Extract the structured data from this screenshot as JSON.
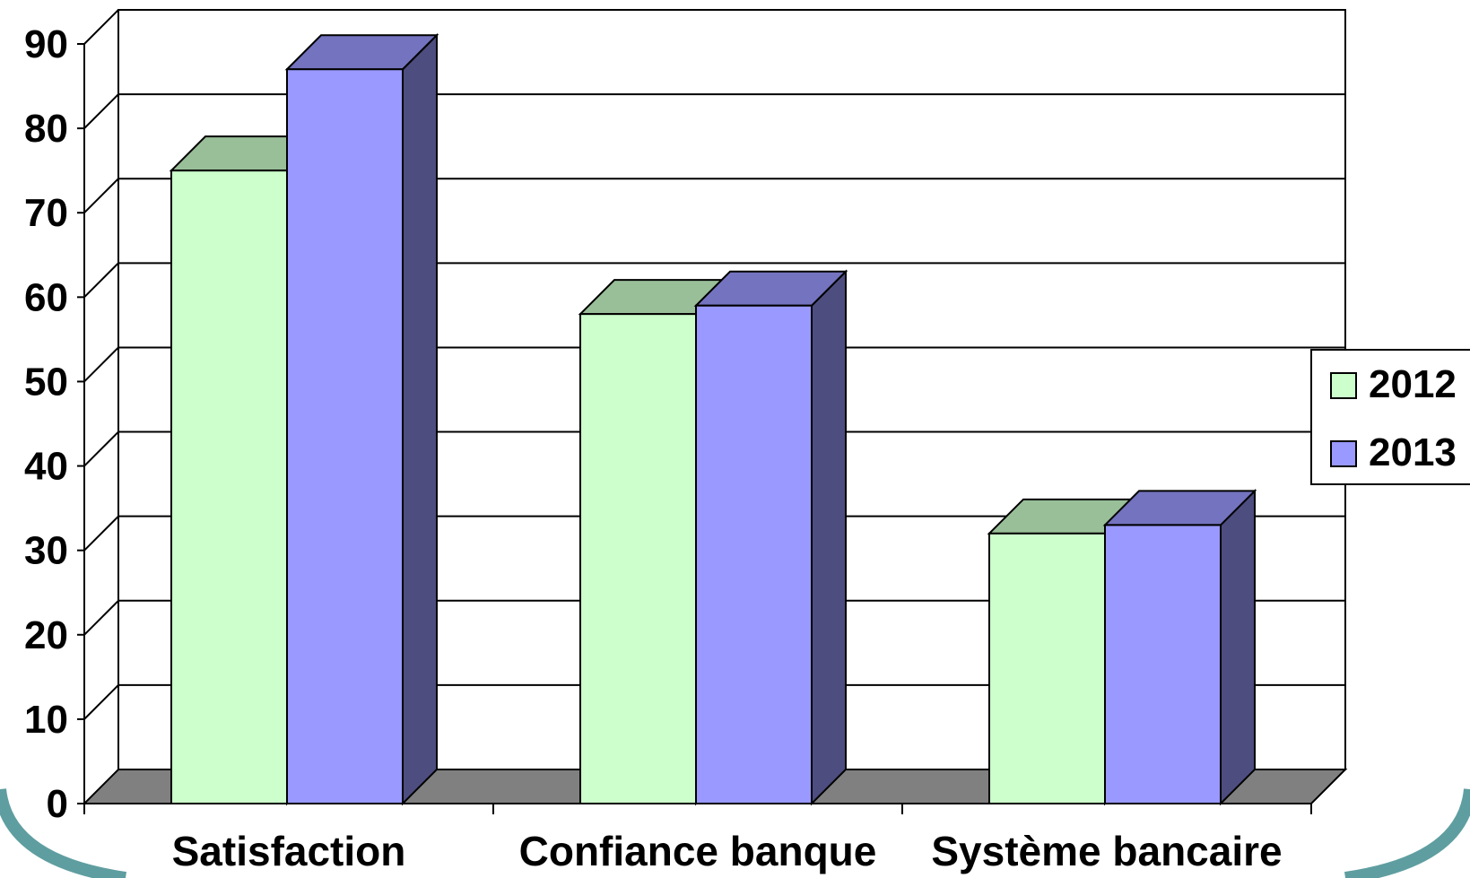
{
  "chart_data": {
    "type": "bar",
    "title": "",
    "xlabel": "",
    "ylabel": "",
    "categories": [
      "Satisfaction",
      "Confiance banque",
      "Système bancaire"
    ],
    "series": [
      {
        "name": "2012",
        "values": [
          75,
          58,
          32
        ],
        "colors": {
          "front": "#ccffcc",
          "top": "#99bf99",
          "side": "#99bf99"
        }
      },
      {
        "name": "2013",
        "values": [
          87,
          59,
          33
        ],
        "colors": {
          "front": "#9999ff",
          "top": "#7373bf",
          "side": "#4d4d80"
        }
      }
    ],
    "ylim": [
      0,
      90
    ],
    "yticks": [
      "0",
      "10",
      "20",
      "30",
      "40",
      "50",
      "60",
      "70",
      "80",
      "90"
    ],
    "grid": true,
    "legend": "right",
    "style": "3d",
    "floor_color": "#808080",
    "decor_color": "#5f9ea0"
  }
}
